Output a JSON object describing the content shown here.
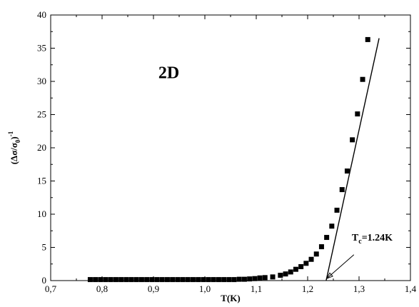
{
  "chart_data": {
    "type": "scatter",
    "xlabel": "T(K)",
    "ylabel": "(Δσ/σ",
    "ylabel_sub": "0",
    "ylabel_tail": ")",
    "ylabel_sup": "-1",
    "xlim": [
      0.7,
      1.4
    ],
    "ylim": [
      0,
      40
    ],
    "xticks": [
      {
        "value": 0.7,
        "label": "0,7"
      },
      {
        "value": 0.8,
        "label": "0,8"
      },
      {
        "value": 0.9,
        "label": "0,9"
      },
      {
        "value": 1.0,
        "label": "1,0"
      },
      {
        "value": 1.1,
        "label": "1,1"
      },
      {
        "value": 1.2,
        "label": "1,2"
      },
      {
        "value": 1.3,
        "label": "1,3"
      },
      {
        "value": 1.4,
        "label": "1,4"
      }
    ],
    "yticks": [
      {
        "value": 0,
        "label": "0"
      },
      {
        "value": 5,
        "label": "5"
      },
      {
        "value": 10,
        "label": "10"
      },
      {
        "value": 15,
        "label": "15"
      },
      {
        "value": 20,
        "label": "20"
      },
      {
        "value": 25,
        "label": "25"
      },
      {
        "value": 30,
        "label": "30"
      },
      {
        "value": 35,
        "label": "35"
      },
      {
        "value": 40,
        "label": "40"
      }
    ],
    "grid": false,
    "legend": "none",
    "series": [
      {
        "marker": "square",
        "color": "#000000",
        "x": [
          0.777,
          0.787,
          0.797,
          0.807,
          0.817,
          0.827,
          0.837,
          0.847,
          0.857,
          0.867,
          0.877,
          0.887,
          0.897,
          0.907,
          0.917,
          0.927,
          0.937,
          0.947,
          0.957,
          0.967,
          0.977,
          0.987,
          0.997,
          1.007,
          1.017,
          1.027,
          1.037,
          1.047,
          1.057,
          1.067,
          1.077,
          1.087,
          1.097,
          1.107,
          1.117,
          1.132,
          1.147,
          1.157,
          1.167,
          1.177,
          1.187,
          1.197,
          1.207,
          1.217,
          1.227,
          1.237,
          1.247,
          1.257,
          1.267,
          1.277,
          1.287,
          1.297,
          1.307,
          1.317
        ],
        "y": [
          0.15,
          0.15,
          0.15,
          0.15,
          0.15,
          0.15,
          0.15,
          0.15,
          0.15,
          0.15,
          0.15,
          0.15,
          0.15,
          0.15,
          0.15,
          0.15,
          0.15,
          0.15,
          0.15,
          0.15,
          0.15,
          0.15,
          0.15,
          0.15,
          0.15,
          0.15,
          0.15,
          0.15,
          0.15,
          0.2,
          0.2,
          0.25,
          0.3,
          0.4,
          0.45,
          0.55,
          0.8,
          1.0,
          1.3,
          1.7,
          2.1,
          2.6,
          3.2,
          4.0,
          5.1,
          6.5,
          8.2,
          10.6,
          13.7,
          16.5,
          21.2,
          25.1,
          30.3,
          36.3
        ]
      }
    ],
    "fit_line": {
      "x": [
        1.236,
        1.339
      ],
      "y": [
        0,
        36.5
      ]
    },
    "annotations": [
      {
        "id": "dimension",
        "text": "2D",
        "x": 0.93,
        "y": 30.5
      },
      {
        "id": "tc",
        "text_main": "T",
        "text_sub": "c",
        "text_rest": "=1.24K",
        "x": 1.286,
        "y": 6.0,
        "arrow_from": [
          1.29,
          3.9
        ],
        "arrow_to": [
          1.237,
          0.3
        ]
      }
    ]
  }
}
